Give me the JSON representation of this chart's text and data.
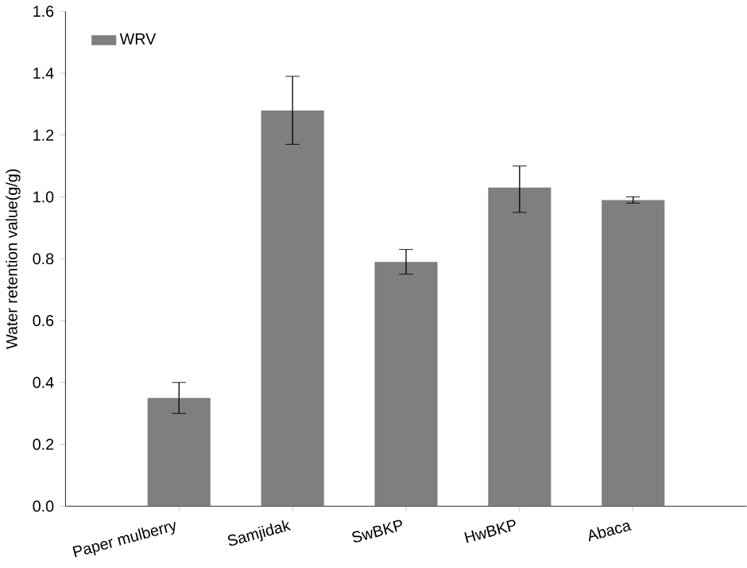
{
  "chart_data": {
    "type": "bar",
    "ylabel": "Water retention value(g/g)",
    "categories": [
      "Paper mulberry",
      "Samjidak",
      "SwBKP",
      "HwBKP",
      "Abaca"
    ],
    "series": [
      {
        "name": "WRV",
        "color": "#7f7f82",
        "values": [
          0.35,
          1.28,
          0.79,
          1.03,
          0.99
        ],
        "errors": [
          [
            0.3,
            0.4
          ],
          [
            1.17,
            1.39
          ],
          [
            0.75,
            0.83
          ],
          [
            0.95,
            1.1
          ],
          [
            0.98,
            1.0
          ]
        ]
      }
    ],
    "ylim": [
      0,
      1.6
    ],
    "yticks": [
      {
        "value": 0,
        "label": "0.0"
      },
      0.2,
      0.4,
      0.6,
      0.8,
      {
        "value": 1,
        "label": "1.0"
      },
      1.2,
      1.4,
      1.6
    ],
    "legend": "top left",
    "grid": false
  }
}
